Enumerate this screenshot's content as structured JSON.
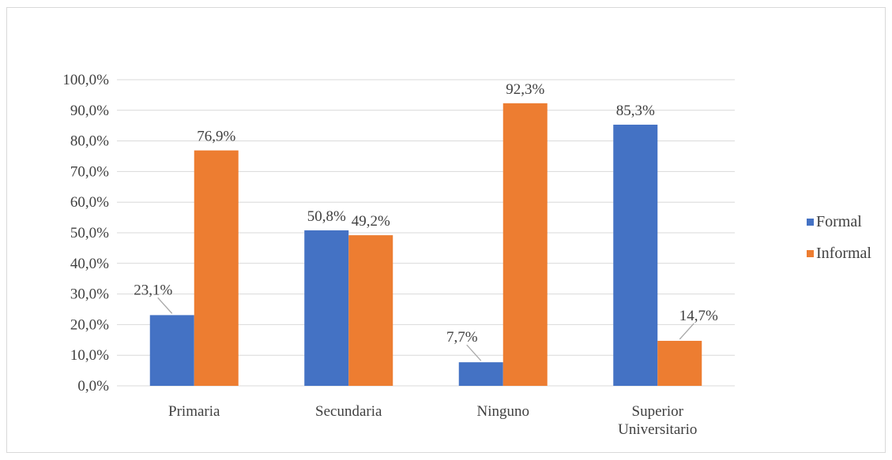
{
  "chart_data": {
    "type": "bar",
    "categories": [
      "Primaria",
      "Secundaria",
      "Ninguno",
      "Superior Universitario"
    ],
    "category_lines": [
      [
        "Primaria"
      ],
      [
        "Secundaria"
      ],
      [
        "Ninguno"
      ],
      [
        "Superior",
        "Universitario"
      ]
    ],
    "series": [
      {
        "name": "Formal",
        "values": [
          23.1,
          50.8,
          7.7,
          85.3
        ],
        "labels": [
          "23,1%",
          "50,8%",
          "7,7%",
          "85,3%"
        ],
        "color": "#4472c4"
      },
      {
        "name": "Informal",
        "values": [
          76.9,
          49.2,
          92.3,
          14.7
        ],
        "labels": [
          "76,9%",
          "49,2%",
          "92,3%",
          "14,7%"
        ],
        "color": "#ed7d31"
      }
    ],
    "ylim": [
      0,
      100
    ],
    "yticks": [
      "0,0%",
      "10,0%",
      "20,0%",
      "30,0%",
      "40,0%",
      "50,0%",
      "60,0%",
      "70,0%",
      "80,0%",
      "90,0%",
      "100,0%"
    ],
    "grid": true,
    "legend_position": "right",
    "title": "",
    "xlabel": "",
    "ylabel": ""
  }
}
